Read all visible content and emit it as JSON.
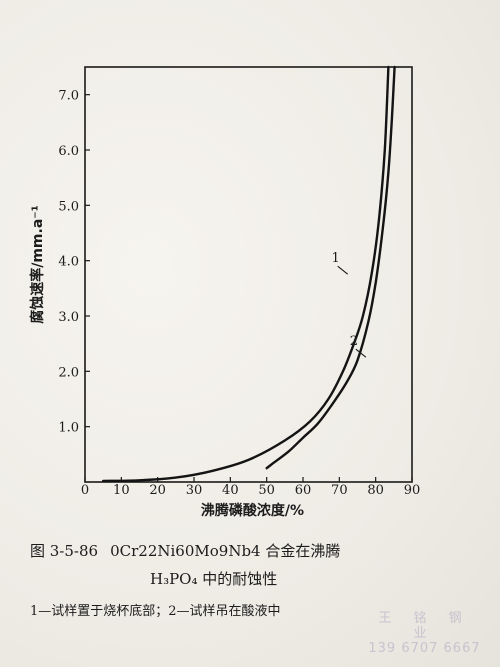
{
  "chart_data": {
    "type": "line",
    "xlabel": "沸腾磷酸浓度/%",
    "ylabel": "腐蚀速率/mm.a⁻¹",
    "xlim": [
      0,
      90
    ],
    "ylim": [
      0,
      7.5
    ],
    "x_ticks": [
      0,
      10,
      20,
      30,
      40,
      50,
      60,
      70,
      80,
      90
    ],
    "x_tick_labels": [
      "0",
      "10",
      "20",
      "30",
      "40",
      "50",
      "60",
      "70",
      "80",
      "90"
    ],
    "y_ticks": [
      1.0,
      2.0,
      3.0,
      4.0,
      5.0,
      6.0,
      7.0
    ],
    "y_tick_labels": [
      "1.0",
      "2.0",
      "3.0",
      "4.0",
      "5.0",
      "6.0",
      "7.0"
    ],
    "grid": false,
    "series": [
      {
        "name": "1",
        "x": [
          5,
          15,
          25,
          35,
          45,
          55,
          62,
          67,
          71,
          74,
          76.5,
          79,
          81,
          82.5,
          83.5
        ],
        "y": [
          0.02,
          0.03,
          0.08,
          0.2,
          0.4,
          0.75,
          1.1,
          1.5,
          2.0,
          2.5,
          3.0,
          3.8,
          4.8,
          6.0,
          7.5
        ]
      },
      {
        "name": "2",
        "x": [
          50,
          52,
          56,
          60,
          64,
          68,
          72,
          75,
          78,
          80,
          82,
          83.5,
          84.5,
          85.2
        ],
        "y": [
          0.25,
          0.35,
          0.55,
          0.8,
          1.05,
          1.4,
          1.8,
          2.2,
          2.9,
          3.6,
          4.6,
          5.6,
          6.6,
          7.5
        ]
      }
    ],
    "annotations": [
      {
        "text": "1",
        "x": 69,
        "y": 3.9
      },
      {
        "text": "2",
        "x": 74,
        "y": 2.4
      }
    ]
  },
  "caption": {
    "figure_number": "图 3-5-86",
    "title_line1": "0Cr22Ni60Mo9Nb4 合金在沸腾",
    "title_line2_formula": "H₃PO₄",
    "title_line2_rest": " 中的耐蚀性",
    "legend_note": "1—试样置于烧杯底部；2—试样吊在酸液中"
  },
  "watermark": {
    "name": "王 铭 钢 业",
    "phone": "139 6707 6667"
  }
}
